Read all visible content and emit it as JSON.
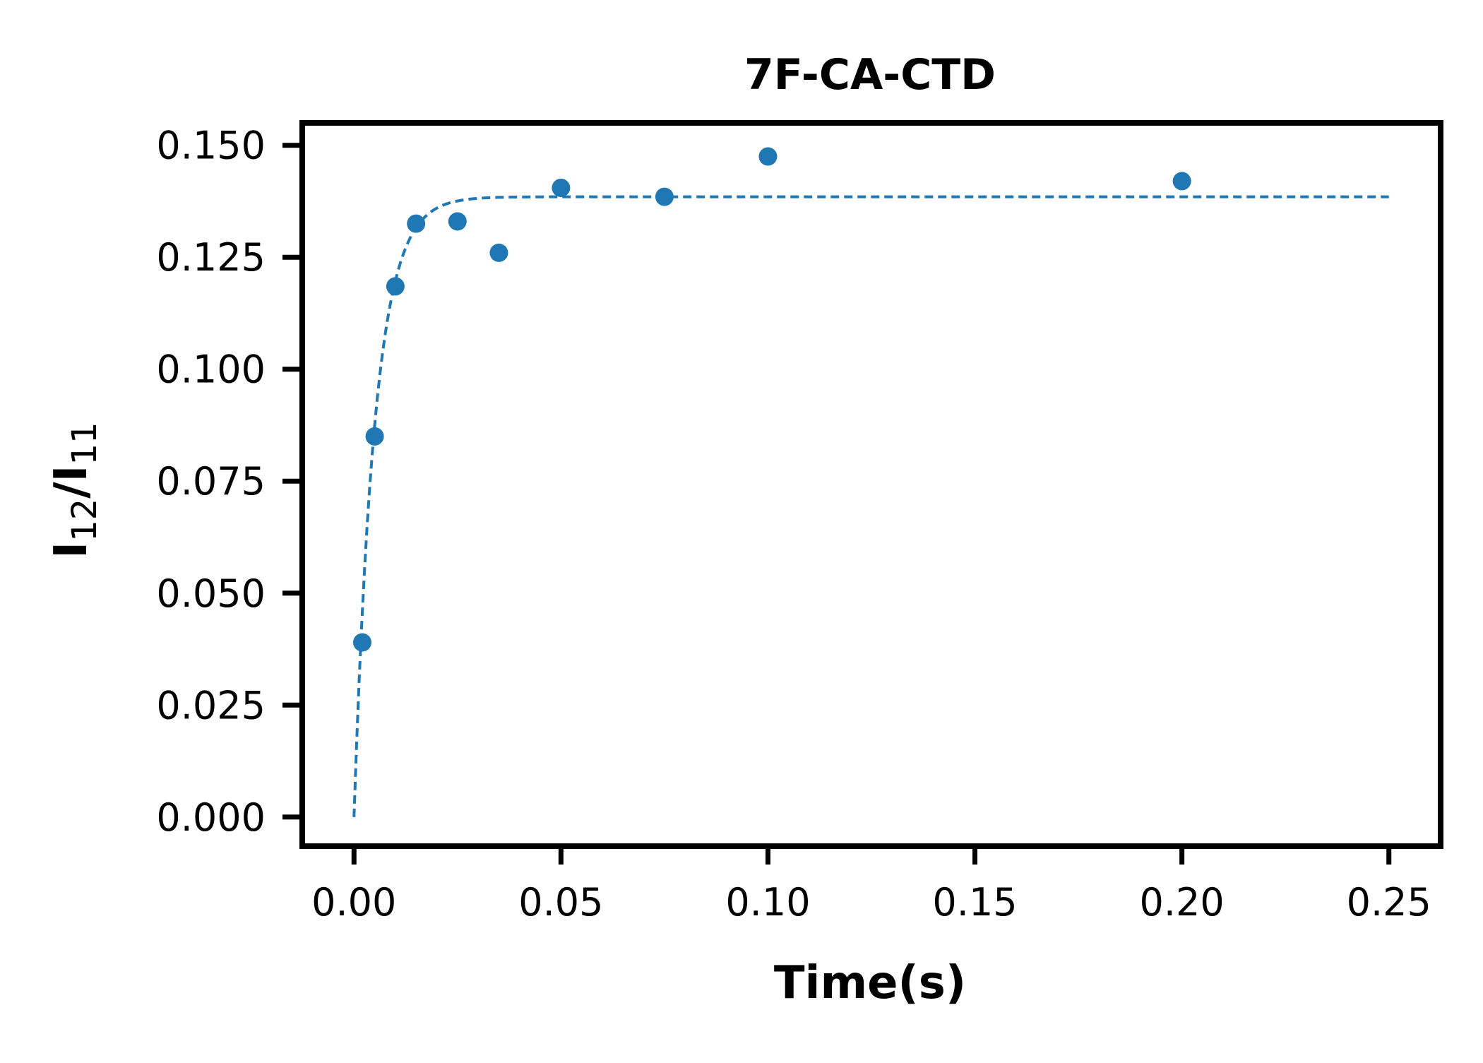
{
  "chart_data": {
    "type": "scatter",
    "title": "7F-CA-CTD",
    "xlabel": "Time(s)",
    "ylabel": {
      "main": "I",
      "sub1": "12",
      "sep": "/",
      "main2": "I",
      "sub2": "11"
    },
    "xlim": [
      -0.0125,
      0.2625
    ],
    "ylim": [
      -0.0065,
      0.155
    ],
    "x_ticks": [
      0.0,
      0.05,
      0.1,
      0.15,
      0.2,
      0.25
    ],
    "x_tick_labels": [
      "0.00",
      "0.05",
      "0.10",
      "0.15",
      "0.20",
      "0.25"
    ],
    "y_ticks": [
      0.0,
      0.025,
      0.05,
      0.075,
      0.1,
      0.125,
      0.15
    ],
    "y_tick_labels": [
      "0.000",
      "0.025",
      "0.050",
      "0.075",
      "0.100",
      "0.125",
      "0.150"
    ],
    "grid": false,
    "color": "#1f77b4",
    "series": [
      {
        "kind": "points",
        "x": [
          0.002,
          0.005,
          0.01,
          0.015,
          0.025,
          0.035,
          0.05,
          0.075,
          0.1,
          0.2
        ],
        "y": [
          0.039,
          0.085,
          0.1185,
          0.1325,
          0.133,
          0.126,
          0.1405,
          0.1385,
          0.1475,
          0.142
        ]
      },
      {
        "kind": "fit",
        "style": "dashed",
        "model": "exponential rise",
        "plateau": 0.1385,
        "rate": 200,
        "x_range": [
          0.0,
          0.25
        ]
      }
    ]
  }
}
